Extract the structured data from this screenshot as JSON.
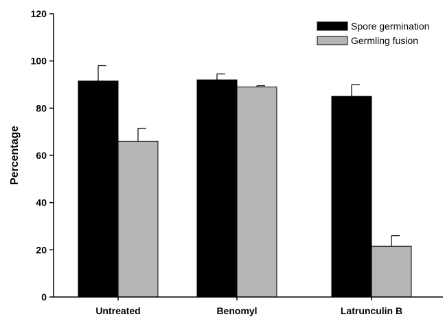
{
  "chart_data": {
    "type": "bar",
    "title": "",
    "xlabel": "",
    "ylabel": "Percentage",
    "ylim": [
      0,
      120
    ],
    "yticks": [
      0,
      20,
      40,
      60,
      80,
      100,
      120
    ],
    "categories": [
      "Untreated",
      "Benomyl",
      "Latrunculin B"
    ],
    "series": [
      {
        "name": "Spore germination",
        "color": "#000000",
        "values": [
          91.5,
          92,
          85
        ],
        "errors": [
          6.5,
          2.5,
          5
        ]
      },
      {
        "name": "Germling fusion",
        "color": "#b5b5b5",
        "values": [
          66,
          89,
          21.5
        ],
        "errors": [
          5.5,
          0.5,
          4.5
        ]
      }
    ],
    "legend": "top-right",
    "grid": false
  }
}
